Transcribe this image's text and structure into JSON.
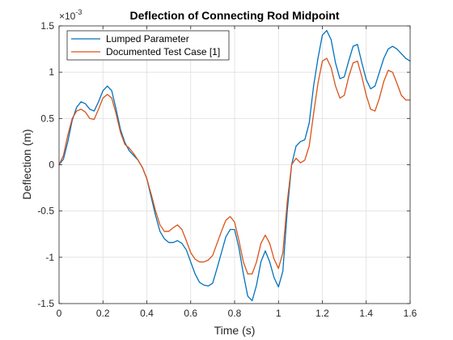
{
  "chart_data": {
    "type": "line",
    "title": "Deflection of Connecting Rod Midpoint",
    "xlabel": "Time (s)",
    "ylabel": "Deflection (m)",
    "xlim": [
      0,
      1.6
    ],
    "ylim": [
      -1.5,
      1.5
    ],
    "y_exponent_label": "×10",
    "y_exponent_power": "-3",
    "grid": true,
    "legend_position": "top-left",
    "x_ticks": [
      "0",
      "0.2",
      "0.4",
      "0.6",
      "0.8",
      "1",
      "1.2",
      "1.4",
      "1.6"
    ],
    "y_ticks": [
      "-1.5",
      "-1",
      "-0.5",
      "0",
      "0.5",
      "1",
      "1.5"
    ],
    "x_tick_values": [
      0,
      0.2,
      0.4,
      0.6,
      0.8,
      1.0,
      1.2,
      1.4,
      1.6
    ],
    "y_tick_values": [
      -1.5,
      -1,
      -0.5,
      0,
      0.5,
      1,
      1.5
    ],
    "series": [
      {
        "name": "Lumped Parameter",
        "color": "#0072BD",
        "x": [
          0,
          0.02,
          0.04,
          0.06,
          0.08,
          0.1,
          0.12,
          0.14,
          0.16,
          0.18,
          0.2,
          0.22,
          0.24,
          0.26,
          0.28,
          0.3,
          0.32,
          0.34,
          0.36,
          0.38,
          0.4,
          0.42,
          0.44,
          0.46,
          0.48,
          0.5,
          0.52,
          0.54,
          0.56,
          0.58,
          0.6,
          0.62,
          0.64,
          0.66,
          0.68,
          0.7,
          0.72,
          0.74,
          0.76,
          0.78,
          0.8,
          0.82,
          0.84,
          0.86,
          0.88,
          0.9,
          0.92,
          0.94,
          0.96,
          0.98,
          1.0,
          1.02,
          1.04,
          1.06,
          1.08,
          1.1,
          1.12,
          1.14,
          1.16,
          1.18,
          1.2,
          1.22,
          1.24,
          1.26,
          1.28,
          1.3,
          1.32,
          1.34,
          1.36,
          1.38,
          1.4,
          1.42,
          1.44,
          1.46,
          1.48,
          1.5,
          1.52,
          1.54,
          1.56,
          1.58,
          1.6
        ],
        "y": [
          0,
          0.06,
          0.25,
          0.48,
          0.62,
          0.68,
          0.66,
          0.6,
          0.58,
          0.68,
          0.8,
          0.85,
          0.8,
          0.6,
          0.38,
          0.24,
          0.15,
          0.1,
          0.05,
          -0.03,
          -0.15,
          -0.35,
          -0.55,
          -0.72,
          -0.8,
          -0.84,
          -0.84,
          -0.82,
          -0.85,
          -0.92,
          -1.05,
          -1.18,
          -1.27,
          -1.3,
          -1.31,
          -1.28,
          -1.12,
          -0.95,
          -0.78,
          -0.7,
          -0.7,
          -0.9,
          -1.18,
          -1.42,
          -1.47,
          -1.3,
          -1.05,
          -0.93,
          -1.05,
          -1.22,
          -1.32,
          -1.15,
          -0.5,
          0,
          0.2,
          0.25,
          0.27,
          0.45,
          0.85,
          1.15,
          1.4,
          1.45,
          1.35,
          1.1,
          0.93,
          0.95,
          1.12,
          1.28,
          1.3,
          1.1,
          0.92,
          0.82,
          0.85,
          1.0,
          1.15,
          1.25,
          1.28,
          1.25,
          1.2,
          1.15,
          1.12
        ]
      },
      {
        "name": "Documented Test Case [1]",
        "color": "#D95319",
        "x": [
          0,
          0.02,
          0.04,
          0.06,
          0.08,
          0.1,
          0.12,
          0.14,
          0.16,
          0.18,
          0.2,
          0.22,
          0.24,
          0.26,
          0.28,
          0.3,
          0.32,
          0.34,
          0.36,
          0.38,
          0.4,
          0.42,
          0.44,
          0.46,
          0.48,
          0.5,
          0.52,
          0.54,
          0.56,
          0.58,
          0.6,
          0.62,
          0.64,
          0.66,
          0.68,
          0.7,
          0.72,
          0.74,
          0.76,
          0.78,
          0.8,
          0.82,
          0.84,
          0.86,
          0.88,
          0.9,
          0.92,
          0.94,
          0.96,
          0.98,
          1.0,
          1.02,
          1.04,
          1.06,
          1.08,
          1.1,
          1.12,
          1.14,
          1.16,
          1.18,
          1.2,
          1.22,
          1.24,
          1.26,
          1.28,
          1.3,
          1.32,
          1.34,
          1.36,
          1.38,
          1.4,
          1.42,
          1.44,
          1.46,
          1.48,
          1.5,
          1.52,
          1.54,
          1.56,
          1.58,
          1.6
        ],
        "y": [
          0,
          0.1,
          0.32,
          0.5,
          0.58,
          0.6,
          0.57,
          0.5,
          0.49,
          0.6,
          0.72,
          0.76,
          0.72,
          0.55,
          0.35,
          0.22,
          0.18,
          0.12,
          0.05,
          -0.03,
          -0.15,
          -0.32,
          -0.5,
          -0.65,
          -0.72,
          -0.72,
          -0.68,
          -0.65,
          -0.7,
          -0.82,
          -0.95,
          -1.02,
          -1.05,
          -1.05,
          -1.03,
          -0.98,
          -0.85,
          -0.72,
          -0.6,
          -0.56,
          -0.62,
          -0.82,
          -1.05,
          -1.18,
          -1.18,
          -1.05,
          -0.85,
          -0.76,
          -0.85,
          -1.02,
          -1.12,
          -0.95,
          -0.4,
          0,
          0.07,
          0.02,
          0.05,
          0.2,
          0.55,
          0.88,
          1.12,
          1.15,
          1.05,
          0.85,
          0.72,
          0.75,
          0.95,
          1.1,
          1.12,
          0.95,
          0.75,
          0.6,
          0.58,
          0.72,
          0.9,
          1.02,
          1.0,
          0.88,
          0.75,
          0.7,
          0.7
        ]
      }
    ]
  }
}
